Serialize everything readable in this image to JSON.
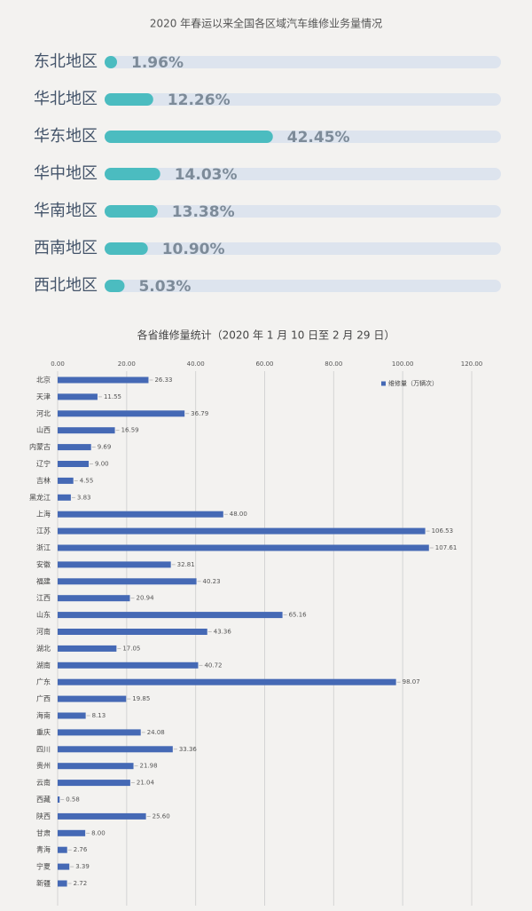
{
  "chart_data": [
    {
      "type": "progress",
      "title": "2020 年春运以来全国各区域汽车维修业务量情况",
      "categories": [
        "东北地区",
        "华北地区",
        "华东地区",
        "华中地区",
        "华南地区",
        "西南地区",
        "西北地区"
      ],
      "values": [
        1.96,
        12.26,
        42.45,
        14.03,
        13.38,
        10.9,
        5.03
      ],
      "value_labels": [
        "1.96%",
        "12.26%",
        "42.45%",
        "14.03%",
        "13.38%",
        "10.90%",
        "5.03%"
      ],
      "xlim": [
        0,
        100
      ],
      "color": "#4bbcc0",
      "track_color": "#dde4ee"
    },
    {
      "type": "hbar",
      "title": "各省维修量统计（2020 年 1 月 10 日至 2 月 29 日）",
      "categories": [
        "北京",
        "天津",
        "河北",
        "山西",
        "内蒙古",
        "辽宁",
        "吉林",
        "黑龙江",
        "上海",
        "江苏",
        "浙江",
        "安徽",
        "福建",
        "江西",
        "山东",
        "河南",
        "湖北",
        "湖南",
        "广东",
        "广西",
        "海南",
        "重庆",
        "四川",
        "贵州",
        "云南",
        "西藏",
        "陕西",
        "甘肃",
        "青海",
        "宁夏",
        "新疆"
      ],
      "series": [
        {
          "name": "维修量（万辆次）",
          "color": "#4569b5",
          "values": [
            26.33,
            11.55,
            36.79,
            16.59,
            9.69,
            9.0,
            4.55,
            3.83,
            48.0,
            106.53,
            107.61,
            32.81,
            40.23,
            20.94,
            65.16,
            43.36,
            17.05,
            40.72,
            98.07,
            19.85,
            8.13,
            24.08,
            33.36,
            21.98,
            21.04,
            0.58,
            25.6,
            8.0,
            2.76,
            3.39,
            2.72
          ],
          "value_labels": [
            "26.33",
            "11.55",
            "36.79",
            "16.59",
            "9.69",
            "9.00",
            "4.55",
            "3.83",
            "48.00",
            "106.53",
            "107.61",
            "32.81",
            "40.23",
            "20.94",
            "65.16",
            "43.36",
            "17.05",
            "40.72",
            "98.07",
            "19.85",
            "8.13",
            "24.08",
            "33.36",
            "21.98",
            "21.04",
            "0.58",
            "25.60",
            "8.00",
            "2.76",
            "3.39",
            "2.72"
          ]
        }
      ],
      "xlim": [
        0,
        120
      ],
      "xticks": [
        {
          "value": 0,
          "label": "0.00"
        },
        {
          "value": 20,
          "label": "20.00"
        },
        {
          "value": 40,
          "label": "40.00"
        },
        {
          "value": 60,
          "label": "60.00"
        },
        {
          "value": 80,
          "label": "80.00"
        },
        {
          "value": 100,
          "label": "100.00"
        },
        {
          "value": 120,
          "label": "120.00"
        }
      ],
      "grid": true,
      "legend": "top-right"
    }
  ]
}
